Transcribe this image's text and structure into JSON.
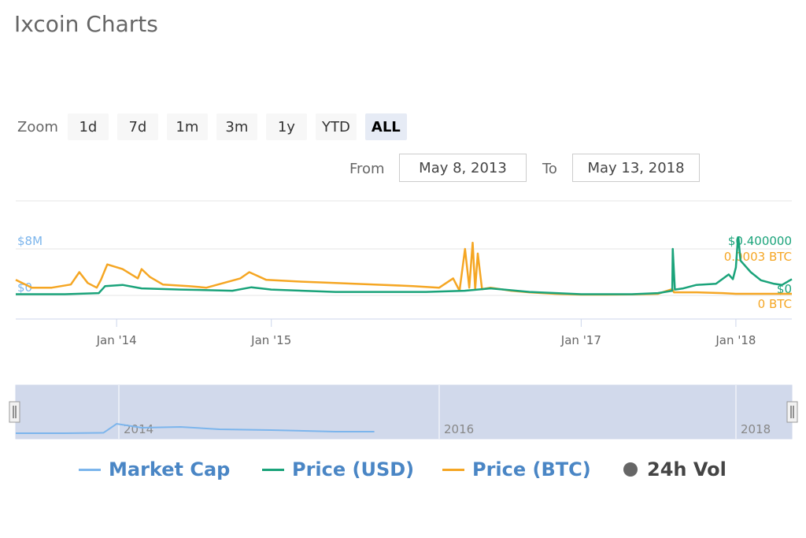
{
  "page": {
    "title": "Ixcoin Charts"
  },
  "zoom": {
    "label": "Zoom",
    "buttons": [
      "1d",
      "7d",
      "1m",
      "3m",
      "1y",
      "YTD",
      "ALL"
    ],
    "active": "ALL"
  },
  "range": {
    "from_label": "From",
    "from_value": "May 8, 2013",
    "to_label": "To",
    "to_value": "May 13, 2018"
  },
  "legend": {
    "market_cap": "Market Cap",
    "price_usd": "Price (USD)",
    "price_btc": "Price (BTC)",
    "vol": "24h Vol"
  },
  "colors": {
    "market_cap": "#7cb5ec",
    "price_usd": "#1aa37a",
    "price_btc": "#f5a623",
    "vol": "#666666",
    "navigator_fill": "#cfd7ea"
  },
  "chart_data": {
    "type": "line",
    "x_range": [
      "2013-05-08",
      "2018-05-13"
    ],
    "x_ticks": [
      {
        "date": "2014-01-01",
        "label": "Jan '14"
      },
      {
        "date": "2015-01-01",
        "label": "Jan '15"
      },
      {
        "date": "2017-01-01",
        "label": "Jan '17"
      },
      {
        "date": "2018-01-01",
        "label": "Jan '18"
      }
    ],
    "axes": {
      "market_cap": {
        "ticks": [
          {
            "value": 0,
            "label": "$0"
          },
          {
            "value": 8000000,
            "label": "$8M"
          }
        ],
        "range": [
          0,
          10400000
        ]
      },
      "price_usd": {
        "ticks": [
          {
            "value": 0,
            "label": "$0"
          },
          {
            "value": 0.4,
            "label": "$0.400000"
          }
        ],
        "range": [
          0,
          0.52
        ]
      },
      "price_btc": {
        "ticks": [
          {
            "value": 0,
            "label": "0 BTC"
          },
          {
            "value": 0.0003,
            "label": "0.0003 BTC"
          }
        ],
        "range": [
          0,
          0.00039
        ]
      }
    },
    "series": [
      {
        "name": "Price (BTC)",
        "axis": "price_btc",
        "color": "#f5a623",
        "x": [
          "2013-05-08",
          "2013-06-15",
          "2013-08-01",
          "2013-09-15",
          "2013-10-05",
          "2013-10-25",
          "2013-11-15",
          "2013-11-25",
          "2013-12-10",
          "2014-01-15",
          "2014-02-20",
          "2014-03-01",
          "2014-03-20",
          "2014-04-20",
          "2014-06-20",
          "2014-08-01",
          "2014-10-20",
          "2014-11-10",
          "2014-12-20",
          "2015-03-01",
          "2015-06-01",
          "2015-09-01",
          "2015-12-01",
          "2016-02-01",
          "2016-03-05",
          "2016-03-20",
          "2016-04-02",
          "2016-04-12",
          "2016-04-20",
          "2016-04-26",
          "2016-05-02",
          "2016-05-12",
          "2016-06-01",
          "2016-07-20",
          "2016-09-01",
          "2016-11-01",
          "2017-01-01",
          "2017-03-01",
          "2017-05-01",
          "2017-07-01",
          "2017-08-04",
          "2017-08-08",
          "2017-08-20",
          "2017-10-01",
          "2017-12-01",
          "2018-01-01",
          "2018-03-01",
          "2018-05-13"
        ],
        "values": [
          0.0001,
          5e-05,
          5e-05,
          7e-05,
          0.00015,
          8e-05,
          5e-05,
          0.0001,
          0.0002,
          0.00017,
          0.00011,
          0.00017,
          0.00012,
          7e-05,
          6e-05,
          5e-05,
          0.00011,
          0.00015,
          0.0001,
          9e-05,
          8e-05,
          7e-05,
          6e-05,
          5e-05,
          0.00011,
          3e-05,
          0.0003,
          5e-05,
          0.00034,
          4e-05,
          0.00027,
          4e-05,
          5e-05,
          3e-05,
          2e-05,
          1e-05,
          5e-06,
          5e-06,
          6e-06,
          1e-05,
          4e-05,
          2e-05,
          2e-05,
          2e-05,
          1.5e-05,
          1e-05,
          1e-05,
          1e-05
        ]
      },
      {
        "name": "Price (USD)",
        "axis": "price_usd",
        "color": "#1aa37a",
        "x": [
          "2013-05-08",
          "2013-09-01",
          "2013-11-20",
          "2013-12-05",
          "2014-01-15",
          "2014-03-01",
          "2014-06-01",
          "2014-10-01",
          "2014-11-15",
          "2015-01-01",
          "2015-06-01",
          "2016-01-01",
          "2016-04-01",
          "2016-06-01",
          "2016-09-01",
          "2017-01-01",
          "2017-05-01",
          "2017-07-01",
          "2017-08-04",
          "2017-08-05",
          "2017-08-10",
          "2017-08-30",
          "2017-09-30",
          "2017-11-15",
          "2017-12-15",
          "2017-12-25",
          "2018-01-01",
          "2018-01-06",
          "2018-01-07",
          "2018-01-12",
          "2018-02-05",
          "2018-03-01",
          "2018-04-01",
          "2018-04-20",
          "2018-05-13"
        ],
        "values": [
          0.01,
          0.01,
          0.02,
          0.08,
          0.09,
          0.06,
          0.05,
          0.04,
          0.07,
          0.05,
          0.03,
          0.03,
          0.04,
          0.06,
          0.03,
          0.01,
          0.01,
          0.02,
          0.04,
          0.4,
          0.05,
          0.06,
          0.09,
          0.1,
          0.18,
          0.14,
          0.24,
          0.5,
          0.5,
          0.3,
          0.2,
          0.13,
          0.1,
          0.09,
          0.14
        ]
      }
    ],
    "navigator": {
      "series": "Market Cap",
      "x": [
        "2013-05-08",
        "2013-09-01",
        "2013-12-01",
        "2014-01-01",
        "2014-03-01",
        "2014-06-01",
        "2014-09-01",
        "2015-01-01",
        "2015-06-01",
        "2015-09-01"
      ],
      "values": [
        0.1,
        0.1,
        0.13,
        0.7,
        0.45,
        0.5,
        0.35,
        0.3,
        0.2,
        0.2
      ],
      "labels": [
        "2014",
        "2016",
        "2018"
      ]
    }
  }
}
